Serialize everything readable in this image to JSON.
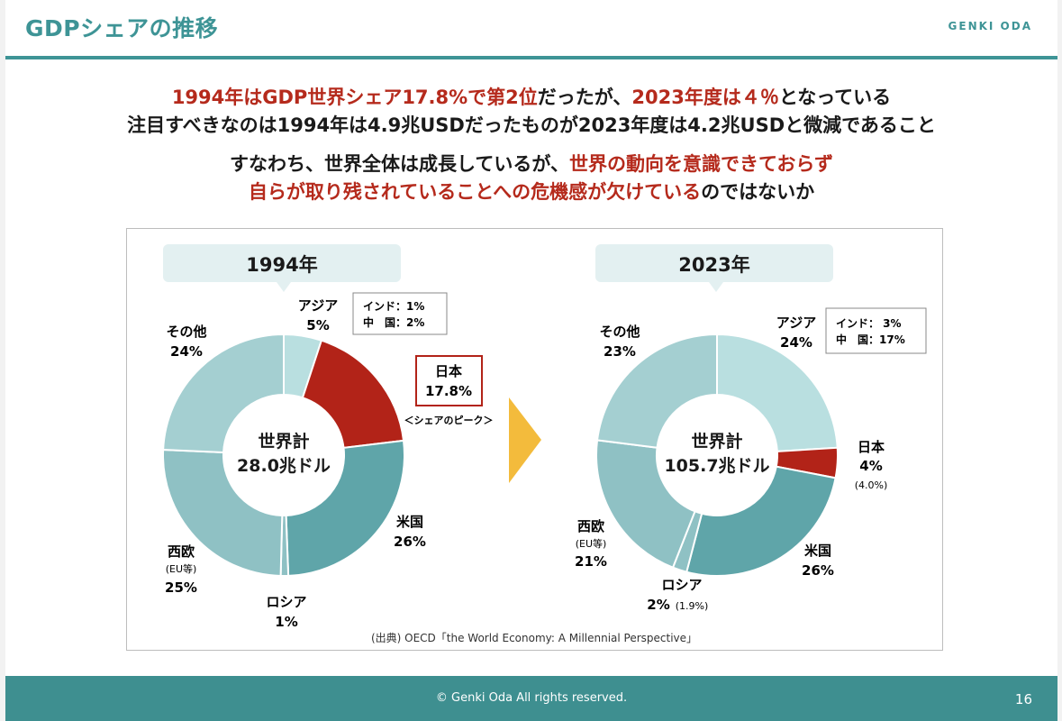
{
  "header": {
    "title": "GDPシェアの推移",
    "author": "GENKI ODA"
  },
  "message": {
    "line1_red_1": "1994年はGDP世界シェア17.8%で第2位",
    "line1_black_1": "だったが、",
    "line1_red_2": "2023年度は４％",
    "line1_black_2": "となっている",
    "line2": "注目すべきなのは1994年は4.9兆USDだったものが2023年度は4.2兆USDと微減であること",
    "line3_black": "すなわち、世界全体は成長しているが、",
    "line3_red": "世界の動向を意識できておらず",
    "line4_red": "自らが取り残されていることへの危機感が欠けている",
    "line4_black": "のではないか"
  },
  "colors": {
    "asia": "#b9dfe0",
    "japan": "#b22318",
    "usa": "#5fa5a9",
    "russia": "#8fc1c4",
    "europe": "#8fc1c4",
    "other": "#a4cfd1",
    "bubble": "#e3f0f1",
    "arrow": "#f3bb3c",
    "accent": "#3e9496"
  },
  "chart_data": [
    {
      "type": "pie",
      "variant": "donut",
      "year_label": "1994年",
      "center_label_1": "世界計",
      "center_label_2": "28.0兆ドル",
      "slices": [
        {
          "name": "アジア",
          "value": 5,
          "label": "5%"
        },
        {
          "name": "日本",
          "value": 17.8,
          "label": "17.8%"
        },
        {
          "name": "米国",
          "value": 26,
          "label": "26%"
        },
        {
          "name": "ロシア",
          "value": 1,
          "label": "1%"
        },
        {
          "name": "西欧",
          "sub": "(EU等)",
          "value": 25,
          "label": "25%"
        },
        {
          "name": "その他",
          "value": 24,
          "label": "24%"
        }
      ],
      "asia_breakdown": [
        "インド：1%",
        "中　国：2%"
      ],
      "peak_note": "＜シェアのピーク＞"
    },
    {
      "type": "pie",
      "variant": "donut",
      "year_label": "2023年",
      "center_label_1": "世界計",
      "center_label_2": "105.7兆ドル",
      "slices": [
        {
          "name": "アジア",
          "value": 24,
          "label": "24%"
        },
        {
          "name": "日本",
          "value": 4,
          "label": "4%",
          "precise": "(4.0%)"
        },
        {
          "name": "米国",
          "value": 26,
          "label": "26%"
        },
        {
          "name": "ロシア",
          "value": 1.9,
          "label": "2%",
          "precise": "(1.9%)"
        },
        {
          "name": "西欧",
          "sub": "(EU等)",
          "value": 21,
          "label": "21%"
        },
        {
          "name": "その他",
          "value": 23,
          "label": "23%"
        }
      ],
      "asia_breakdown": [
        "インド：  3%",
        "中　国：17%"
      ]
    }
  ],
  "source": "(出典) OECD「the World Economy: A Millennial Perspective」",
  "footer": {
    "copyright": "© Genki Oda All rights reserved.",
    "page": "16"
  }
}
